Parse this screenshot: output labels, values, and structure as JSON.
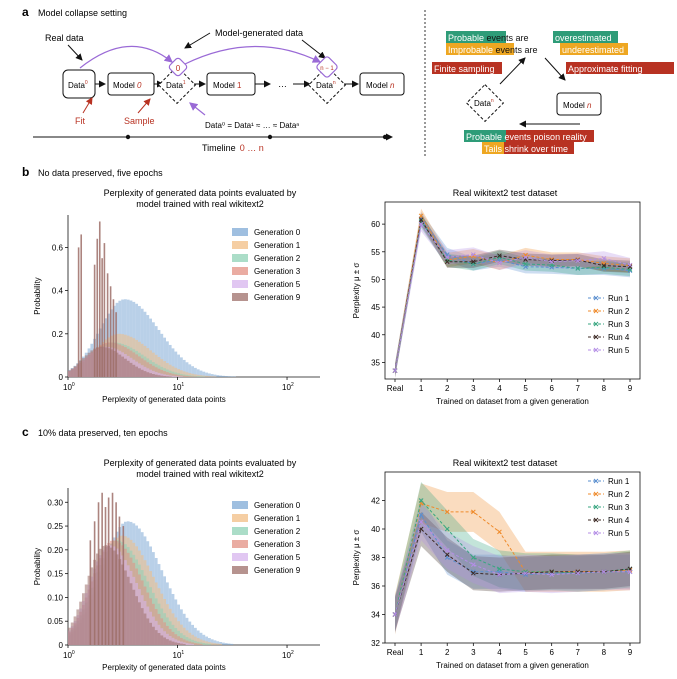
{
  "panel_a": {
    "label": "a",
    "title": "Model collapse setting",
    "real_data": "Real data",
    "model_generated": "Model-generated data",
    "data_nodes": [
      "Data",
      "Data",
      "Data",
      "Data"
    ],
    "data_sups": [
      "0",
      "1",
      "n",
      "n"
    ],
    "data_circle_labels": [
      "0",
      "n − 1"
    ],
    "models": [
      {
        "text": "Model ",
        "num": "0"
      },
      {
        "text": "Model ",
        "num": "1"
      },
      {
        "text": "Model ",
        "num": "n"
      }
    ],
    "ellipsis": "…",
    "fit": "Fit",
    "sample": "Sample",
    "equation": "Data⁰ = Data¹ ≈ … ≈ Dataⁿ",
    "timeline": "Timeline",
    "timeline_range": "0 … n",
    "right": {
      "line1a": "Probable",
      "line1b": " events are ",
      "line1c": "overestimated",
      "line2a": "Improbable",
      "line2b": " events are ",
      "line2c": "underestimated",
      "finite": "Finite sampling",
      "approx": "Approximate fitting",
      "data_node": "Data",
      "data_sup": "n",
      "model_node": "Model ",
      "model_num": "n",
      "bottom1a": "Probable",
      "bottom1b": " events poison reality",
      "bottom2a": "Tails",
      "bottom2b": " shrink over time"
    },
    "colors": {
      "green": "#2e9c78",
      "orange": "#eea722",
      "red": "#b83222",
      "purple": "#9a6ad6"
    }
  },
  "panel_b": {
    "label": "b",
    "subtitle": "No data preserved, five epochs",
    "hist_title_1": "Perplexity of generated data points evaluated by",
    "hist_title_2": "model trained with real wikitext2",
    "line_title": "Real wikitext2 test dataset"
  },
  "panel_c": {
    "label": "c",
    "subtitle": "10% data preserved, ten epochs",
    "hist_title_1": "Perplexity of generated data points evaluated by",
    "hist_title_2": "model trained with real wikitext2",
    "line_title": "Real wikitext2 test dataset"
  },
  "chart_data": [
    {
      "id": "b-hist",
      "type": "bar",
      "xlabel": "Perplexity of generated data points",
      "ylabel": "Probability",
      "x_scale": "log",
      "xlim": [
        1,
        200
      ],
      "ylim": [
        0,
        0.75
      ],
      "x_ticks": [
        {
          "base": "10",
          "exp": "0"
        },
        {
          "base": "10",
          "exp": "1"
        },
        {
          "base": "10",
          "exp": "2"
        }
      ],
      "y_ticks": [
        "0",
        "0.2",
        "0.4",
        "0.6"
      ],
      "legend_placement": "top-right",
      "series": [
        {
          "name": "Generation 0",
          "color": "#7fa9d6",
          "peak_x": 3.3,
          "width": 0.42,
          "peak_y": 0.36
        },
        {
          "name": "Generation 1",
          "color": "#f2be84",
          "peak_x": 2.9,
          "width": 0.4,
          "peak_y": 0.2
        },
        {
          "name": "Generation 2",
          "color": "#8fd1b6",
          "peak_x": 2.6,
          "width": 0.38,
          "peak_y": 0.16
        },
        {
          "name": "Generation 3",
          "color": "#e39083",
          "peak_x": 2.4,
          "width": 0.36,
          "peak_y": 0.16
        },
        {
          "name": "Generation 5",
          "color": "#d7b4ee",
          "peak_x": 2.2,
          "width": 0.33,
          "peak_y": 0.14
        },
        {
          "name": "Generation 9",
          "color": "#9d6f69",
          "peak_x": 2.0,
          "width": 0.3,
          "peak_y": 0.14
        }
      ],
      "spikes": [
        {
          "x": 1.25,
          "y": 0.6
        },
        {
          "x": 1.32,
          "y": 0.66
        },
        {
          "x": 1.75,
          "y": 0.52
        },
        {
          "x": 1.85,
          "y": 0.64
        },
        {
          "x": 1.95,
          "y": 0.72
        },
        {
          "x": 2.05,
          "y": 0.55
        },
        {
          "x": 2.15,
          "y": 0.62
        },
        {
          "x": 2.3,
          "y": 0.48
        },
        {
          "x": 2.45,
          "y": 0.42
        },
        {
          "x": 2.6,
          "y": 0.36
        },
        {
          "x": 2.75,
          "y": 0.3
        }
      ]
    },
    {
      "id": "b-line",
      "type": "line",
      "xlabel": "Trained on dataset from a given generation",
      "ylabel": "Perplexity μ ± σ",
      "categories": [
        "Real",
        "1",
        "2",
        "3",
        "4",
        "5",
        "6",
        "7",
        "8",
        "9"
      ],
      "ylim": [
        32,
        64
      ],
      "y_ticks": [
        35,
        40,
        45,
        50,
        55,
        60
      ],
      "legend_placement": "bottom-right",
      "series": [
        {
          "name": "Run 1",
          "color": "#5a8fcf",
          "values": [
            33.5,
            61,
            54.5,
            52.8,
            53.5,
            52.3,
            52.2,
            52,
            52,
            51.6
          ],
          "band": 1.2
        },
        {
          "name": "Run 2",
          "color": "#ef8b2c",
          "values": [
            33.5,
            61.5,
            53.5,
            54.2,
            53,
            54.4,
            53.6,
            53.6,
            52.9,
            52.5
          ],
          "band": 1.3
        },
        {
          "name": "Run 3",
          "color": "#39a680",
          "values": [
            33.5,
            60.5,
            53.5,
            52.8,
            54,
            52.8,
            52.6,
            52,
            52.2,
            51.8
          ],
          "band": 1.2
        },
        {
          "name": "Run 4",
          "color": "#3d2b26",
          "values": [
            33.5,
            60.8,
            53.2,
            53.2,
            54.3,
            53.6,
            53.4,
            53.5,
            52.5,
            52.3
          ],
          "band": 1.1
        },
        {
          "name": "Run 5",
          "color": "#b48ee6",
          "values": [
            33.5,
            60,
            54,
            54.5,
            53,
            54,
            53.2,
            53.4,
            53.8,
            52.6
          ],
          "band": 1.3
        }
      ]
    },
    {
      "id": "c-hist",
      "type": "bar",
      "xlabel": "Perplexity of generated data points",
      "ylabel": "Probability",
      "x_scale": "log",
      "xlim": [
        1,
        200
      ],
      "ylim": [
        0,
        0.33
      ],
      "x_ticks": [
        {
          "base": "10",
          "exp": "0"
        },
        {
          "base": "10",
          "exp": "1"
        },
        {
          "base": "10",
          "exp": "2"
        }
      ],
      "y_ticks": [
        "0",
        "0.05",
        "0.10",
        "0.15",
        "0.20",
        "0.25",
        "0.30"
      ],
      "legend_placement": "top-right",
      "series": [
        {
          "name": "Generation 0",
          "color": "#7fa9d6",
          "peak_x": 3.5,
          "width": 0.42,
          "peak_y": 0.26
        },
        {
          "name": "Generation 1",
          "color": "#f2be84",
          "peak_x": 3.1,
          "width": 0.4,
          "peak_y": 0.23
        },
        {
          "name": "Generation 2",
          "color": "#8fd1b6",
          "peak_x": 2.8,
          "width": 0.38,
          "peak_y": 0.22
        },
        {
          "name": "Generation 3",
          "color": "#e39083",
          "peak_x": 2.6,
          "width": 0.36,
          "peak_y": 0.22
        },
        {
          "name": "Generation 5",
          "color": "#d7b4ee",
          "peak_x": 2.4,
          "width": 0.34,
          "peak_y": 0.21
        },
        {
          "name": "Generation 9",
          "color": "#9d6f69",
          "peak_x": 2.2,
          "width": 0.32,
          "peak_y": 0.21
        }
      ],
      "spikes": [
        {
          "x": 1.6,
          "y": 0.22
        },
        {
          "x": 1.75,
          "y": 0.26
        },
        {
          "x": 1.9,
          "y": 0.3
        },
        {
          "x": 2.05,
          "y": 0.32
        },
        {
          "x": 2.2,
          "y": 0.29
        },
        {
          "x": 2.35,
          "y": 0.31
        },
        {
          "x": 2.55,
          "y": 0.32
        },
        {
          "x": 2.75,
          "y": 0.3
        },
        {
          "x": 2.95,
          "y": 0.27
        },
        {
          "x": 3.2,
          "y": 0.25
        }
      ]
    },
    {
      "id": "c-line",
      "type": "line",
      "xlabel": "Trained on dataset from a given generation",
      "ylabel": "Perplexity μ ± σ",
      "categories": [
        "Real",
        "1",
        "2",
        "3",
        "4",
        "5",
        "6",
        "7",
        "8",
        "9"
      ],
      "ylim": [
        32,
        44
      ],
      "y_ticks": [
        32,
        34,
        36,
        38,
        40,
        42
      ],
      "legend_placement": "top-right",
      "series": [
        {
          "name": "Run 1",
          "color": "#5a8fcf",
          "values": [
            34,
            41,
            38,
            37,
            37,
            36.8,
            36.9,
            36.9,
            37,
            37
          ],
          "band": 1.2
        },
        {
          "name": "Run 2",
          "color": "#ef8b2c",
          "values": [
            34,
            41.8,
            41.2,
            41.2,
            39.8,
            37,
            37,
            37,
            37,
            37.1
          ],
          "band": 1.4
        },
        {
          "name": "Run 3",
          "color": "#39a680",
          "values": [
            34,
            42,
            40,
            38,
            37.2,
            37,
            37,
            36.9,
            37,
            37.2
          ],
          "band": 1.3
        },
        {
          "name": "Run 4",
          "color": "#3d2b26",
          "values": [
            34,
            40,
            38.2,
            36.9,
            36.8,
            36.9,
            37,
            37,
            37,
            37.2
          ],
          "band": 1.2
        },
        {
          "name": "Run 5",
          "color": "#b48ee6",
          "values": [
            34,
            40.5,
            38.5,
            37.5,
            36.8,
            36.9,
            36.8,
            36.9,
            37,
            37
          ],
          "band": 1.3
        }
      ]
    }
  ]
}
